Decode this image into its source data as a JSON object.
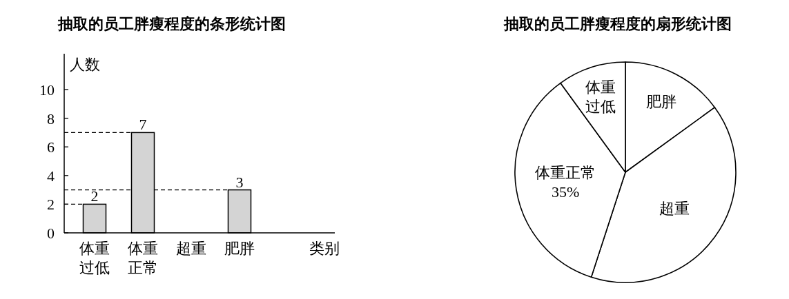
{
  "chart_data": [
    {
      "type": "bar",
      "title": "抽取的员工胖瘦程度的条形统计图",
      "ylabel": "人数",
      "xlabel": "类别",
      "categories": [
        "体重过低",
        "体重正常",
        "超重",
        "肥胖"
      ],
      "values": [
        2,
        7,
        null,
        3
      ],
      "color": "#d4d4d4",
      "ylim": [
        0,
        12.5
      ],
      "yticks": [
        0,
        2,
        4,
        6,
        8,
        10
      ],
      "data_labels": true,
      "ref_lines": [
        {
          "axis": "y",
          "value": 7,
          "line_style": "dashed"
        },
        {
          "axis": "y",
          "value": 3,
          "line_style": "dashed"
        },
        {
          "axis": "y",
          "value": 2,
          "line_style": "dashed"
        }
      ]
    },
    {
      "type": "pie",
      "title": "抽取的员工胖瘦程度的扇形统计图",
      "categories": [
        "肥胖",
        "超重",
        "体重正常",
        "体重过低"
      ],
      "values": [
        15,
        40,
        35,
        10
      ],
      "colors": [
        "#ffffff",
        "#ffffff",
        "#ffffff",
        "#ffffff"
      ],
      "value_labels": [
        null,
        null,
        "35%",
        null
      ]
    }
  ]
}
